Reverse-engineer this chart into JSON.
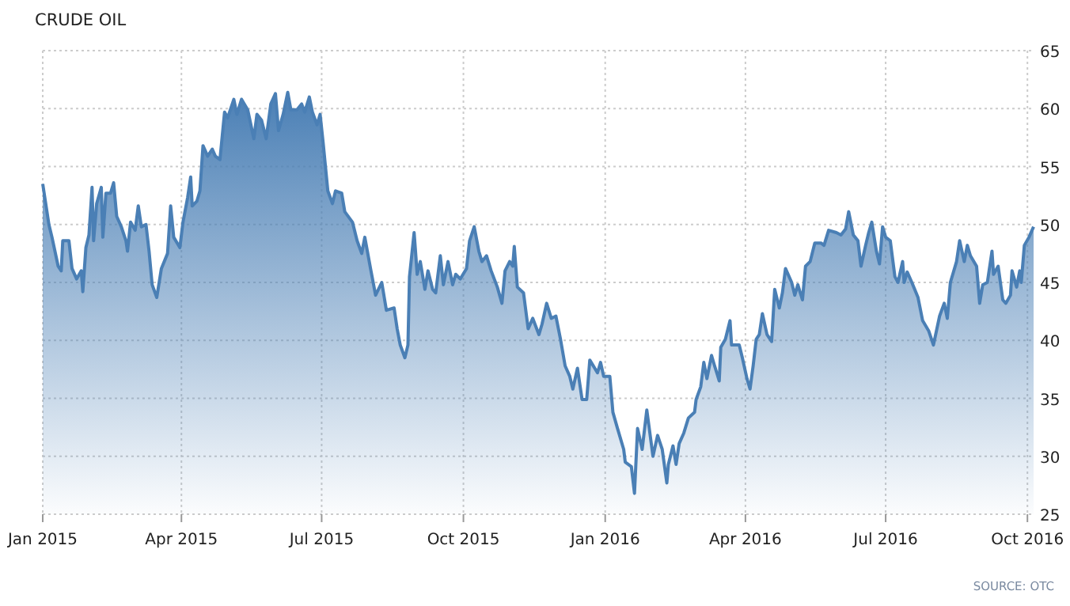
{
  "chart_data": {
    "type": "area",
    "title": "CRUDE OIL",
    "annotations": [
      "SOURCE: OTC"
    ],
    "grid": true,
    "xlim": [
      "2015-01-01",
      "2016-10-05"
    ],
    "xticks": [
      {
        "value": "2015-01-01",
        "label": "Jan 2015"
      },
      {
        "value": "2015-04-01",
        "label": "Apr 2015"
      },
      {
        "value": "2015-07-01",
        "label": "Jul 2015"
      },
      {
        "value": "2015-10-01",
        "label": "Oct 2015"
      },
      {
        "value": "2016-01-01",
        "label": "Jan 2016"
      },
      {
        "value": "2016-04-01",
        "label": "Apr 2016"
      },
      {
        "value": "2016-07-01",
        "label": "Jul 2016"
      },
      {
        "value": "2016-10-01",
        "label": "Oct 2016"
      }
    ],
    "ylim": [
      25,
      65
    ],
    "yticks": [
      25,
      30,
      35,
      40,
      45,
      50,
      55,
      60,
      65
    ],
    "x": [
      "2015-01-01",
      "2015-01-05",
      "2015-01-07",
      "2015-01-11",
      "2015-01-13",
      "2015-01-14",
      "2015-01-18",
      "2015-01-20",
      "2015-01-23",
      "2015-01-26",
      "2015-01-27",
      "2015-01-29",
      "2015-01-31",
      "2015-02-02",
      "2015-02-03",
      "2015-02-05",
      "2015-02-08",
      "2015-02-09",
      "2015-02-11",
      "2015-02-14",
      "2015-02-16",
      "2015-02-18",
      "2015-02-21",
      "2015-02-24",
      "2015-02-25",
      "2015-02-27",
      "2015-03-02",
      "2015-03-04",
      "2015-03-06",
      "2015-03-09",
      "2015-03-11",
      "2015-03-13",
      "2015-03-16",
      "2015-03-19",
      "2015-03-23",
      "2015-03-25",
      "2015-03-27",
      "2015-03-31",
      "2015-04-02",
      "2015-04-05",
      "2015-04-07",
      "2015-04-08",
      "2015-04-11",
      "2015-04-13",
      "2015-04-15",
      "2015-04-18",
      "2015-04-21",
      "2015-04-23",
      "2015-04-26",
      "2015-04-29",
      "2015-05-01",
      "2015-05-05",
      "2015-05-07",
      "2015-05-10",
      "2015-05-14",
      "2015-05-18",
      "2015-05-20",
      "2015-05-23",
      "2015-05-26",
      "2015-05-29",
      "2015-06-01",
      "2015-06-03",
      "2015-06-06",
      "2015-06-09",
      "2015-06-11",
      "2015-06-15",
      "2015-06-18",
      "2015-06-20",
      "2015-06-23",
      "2015-06-25",
      "2015-06-28",
      "2015-06-30",
      "2015-07-02",
      "2015-07-05",
      "2015-07-08",
      "2015-07-10",
      "2015-07-14",
      "2015-07-16",
      "2015-07-21",
      "2015-07-24",
      "2015-07-27",
      "2015-07-29",
      "2015-08-02",
      "2015-08-05",
      "2015-08-09",
      "2015-08-12",
      "2015-08-17",
      "2015-08-19",
      "2015-08-21",
      "2015-08-24",
      "2015-08-26",
      "2015-08-27",
      "2015-08-30",
      "2015-09-01",
      "2015-09-03",
      "2015-09-06",
      "2015-09-08",
      "2015-09-11",
      "2015-09-13",
      "2015-09-16",
      "2015-09-18",
      "2015-09-21",
      "2015-09-24",
      "2015-09-26",
      "2015-09-29",
      "2015-10-03",
      "2015-10-05",
      "2015-10-08",
      "2015-10-11",
      "2015-10-13",
      "2015-10-16",
      "2015-10-19",
      "2015-10-23",
      "2015-10-26",
      "2015-10-28",
      "2015-10-31",
      "2015-11-02",
      "2015-11-03",
      "2015-11-05",
      "2015-11-09",
      "2015-11-12",
      "2015-11-15",
      "2015-11-19",
      "2015-11-21",
      "2015-11-24",
      "2015-11-27",
      "2015-11-30",
      "2015-12-03",
      "2015-12-06",
      "2015-12-09",
      "2015-12-11",
      "2015-12-14",
      "2015-12-17",
      "2015-12-20",
      "2015-12-22",
      "2015-12-27",
      "2015-12-29",
      "2015-12-31",
      "2016-01-04",
      "2016-01-06",
      "2016-01-09",
      "2016-01-13",
      "2016-01-14",
      "2016-01-18",
      "2016-01-20",
      "2016-01-22",
      "2016-01-25",
      "2016-01-28",
      "2016-02-01",
      "2016-02-04",
      "2016-02-07",
      "2016-02-10",
      "2016-02-11",
      "2016-02-14",
      "2016-02-16",
      "2016-02-18",
      "2016-02-21",
      "2016-02-24",
      "2016-02-28",
      "2016-02-29",
      "2016-03-03",
      "2016-03-05",
      "2016-03-07",
      "2016-03-10",
      "2016-03-12",
      "2016-03-15",
      "2016-03-16",
      "2016-03-19",
      "2016-03-22",
      "2016-03-23",
      "2016-03-28",
      "2016-03-30",
      "2016-04-02",
      "2016-04-04",
      "2016-04-06",
      "2016-04-08",
      "2016-04-10",
      "2016-04-12",
      "2016-04-15",
      "2016-04-18",
      "2016-04-20",
      "2016-04-23",
      "2016-04-25",
      "2016-04-27",
      "2016-05-01",
      "2016-05-03",
      "2016-05-05",
      "2016-05-08",
      "2016-05-10",
      "2016-05-13",
      "2016-05-16",
      "2016-05-20",
      "2016-05-22",
      "2016-05-25",
      "2016-05-30",
      "2016-06-02",
      "2016-06-05",
      "2016-06-07",
      "2016-06-10",
      "2016-06-13",
      "2016-06-15",
      "2016-06-18",
      "2016-06-20",
      "2016-06-22",
      "2016-06-25",
      "2016-06-27",
      "2016-06-29",
      "2016-07-01",
      "2016-07-04",
      "2016-07-07",
      "2016-07-09",
      "2016-07-12",
      "2016-07-13",
      "2016-07-15",
      "2016-07-18",
      "2016-07-22",
      "2016-07-25",
      "2016-07-29",
      "2016-08-01",
      "2016-08-05",
      "2016-08-08",
      "2016-08-10",
      "2016-08-12",
      "2016-08-16",
      "2016-08-18",
      "2016-08-21",
      "2016-08-23",
      "2016-08-25",
      "2016-08-29",
      "2016-08-31",
      "2016-09-02",
      "2016-09-05",
      "2016-09-08",
      "2016-09-09",
      "2016-09-12",
      "2016-09-15",
      "2016-09-17",
      "2016-09-20",
      "2016-09-21",
      "2016-09-24",
      "2016-09-26",
      "2016-09-27",
      "2016-09-29",
      "2016-10-02",
      "2016-10-05"
    ],
    "series": [
      {
        "color": "#4a7fb5",
        "values": [
          53.5,
          50,
          48.9,
          46.4,
          46,
          48.6,
          48.6,
          46.2,
          45.3,
          46,
          44.2,
          48,
          49.1,
          53.2,
          48.6,
          51.8,
          53.2,
          48.9,
          52.7,
          52.7,
          53.6,
          50.7,
          49.8,
          48.6,
          47.7,
          50.2,
          49.5,
          51.6,
          49.8,
          50,
          47.7,
          44.8,
          43.7,
          46.2,
          47.5,
          51.6,
          48.9,
          48,
          50.2,
          52.3,
          54.1,
          51.6,
          52,
          52.9,
          56.8,
          55.9,
          56.5,
          55.9,
          55.6,
          59.7,
          59.2,
          60.8,
          59.5,
          60.8,
          59.9,
          57.4,
          59.5,
          59,
          57.4,
          60.4,
          61.3,
          58.1,
          59.5,
          61.4,
          59.9,
          59.9,
          60.4,
          59.7,
          61,
          59.7,
          58.6,
          59.5,
          57,
          52.9,
          51.8,
          52.9,
          52.7,
          51.1,
          50.2,
          48.6,
          47.5,
          48.9,
          46,
          43.9,
          45,
          42.6,
          42.8,
          41,
          39.6,
          38.5,
          39.6,
          45.5,
          49.3,
          45.7,
          46.8,
          44.4,
          46,
          44.4,
          44.1,
          47.3,
          44.8,
          46.8,
          44.8,
          45.7,
          45.3,
          46.2,
          48.6,
          49.8,
          47.7,
          46.8,
          47.3,
          46,
          44.6,
          43.2,
          46,
          46.8,
          46.4,
          48.1,
          44.6,
          44.1,
          41,
          41.9,
          40.5,
          41.4,
          43.2,
          41.9,
          42.1,
          40.1,
          37.8,
          36.9,
          35.8,
          37.6,
          34.9,
          34.9,
          38.3,
          37.2,
          38.1,
          36.9,
          36.9,
          33.8,
          32.4,
          30.6,
          29.5,
          29.1,
          26.8,
          32.4,
          30.6,
          34,
          30,
          31.8,
          30.6,
          27.7,
          29.3,
          30.9,
          29.3,
          31.1,
          32,
          33.3,
          33.8,
          34.9,
          36,
          38.1,
          36.7,
          38.7,
          37.8,
          36.5,
          39.4,
          40.1,
          41.7,
          39.6,
          39.6,
          38.5,
          36.7,
          35.8,
          37.8,
          40.1,
          40.5,
          42.3,
          40.5,
          39.9,
          44.4,
          42.8,
          44.1,
          46.2,
          45,
          43.9,
          44.8,
          43.5,
          46.4,
          46.8,
          48.4,
          48.4,
          48.2,
          49.5,
          49.3,
          49.1,
          49.6,
          51.1,
          49.1,
          48.6,
          46.4,
          48.2,
          49.3,
          50.2,
          47.7,
          46.6,
          49.8,
          48.9,
          48.6,
          45.5,
          45,
          46.8,
          45,
          45.9,
          45,
          43.7,
          41.7,
          40.8,
          39.6,
          42.1,
          43.2,
          41.9,
          45,
          46.8,
          48.6,
          46.8,
          48.2,
          47.3,
          46.4,
          43.2,
          44.8,
          45,
          47.7,
          45.7,
          46.4,
          43.5,
          43.2,
          43.9,
          46,
          44.6,
          46,
          45,
          48.2,
          48.9,
          49.8
        ]
      }
    ]
  }
}
